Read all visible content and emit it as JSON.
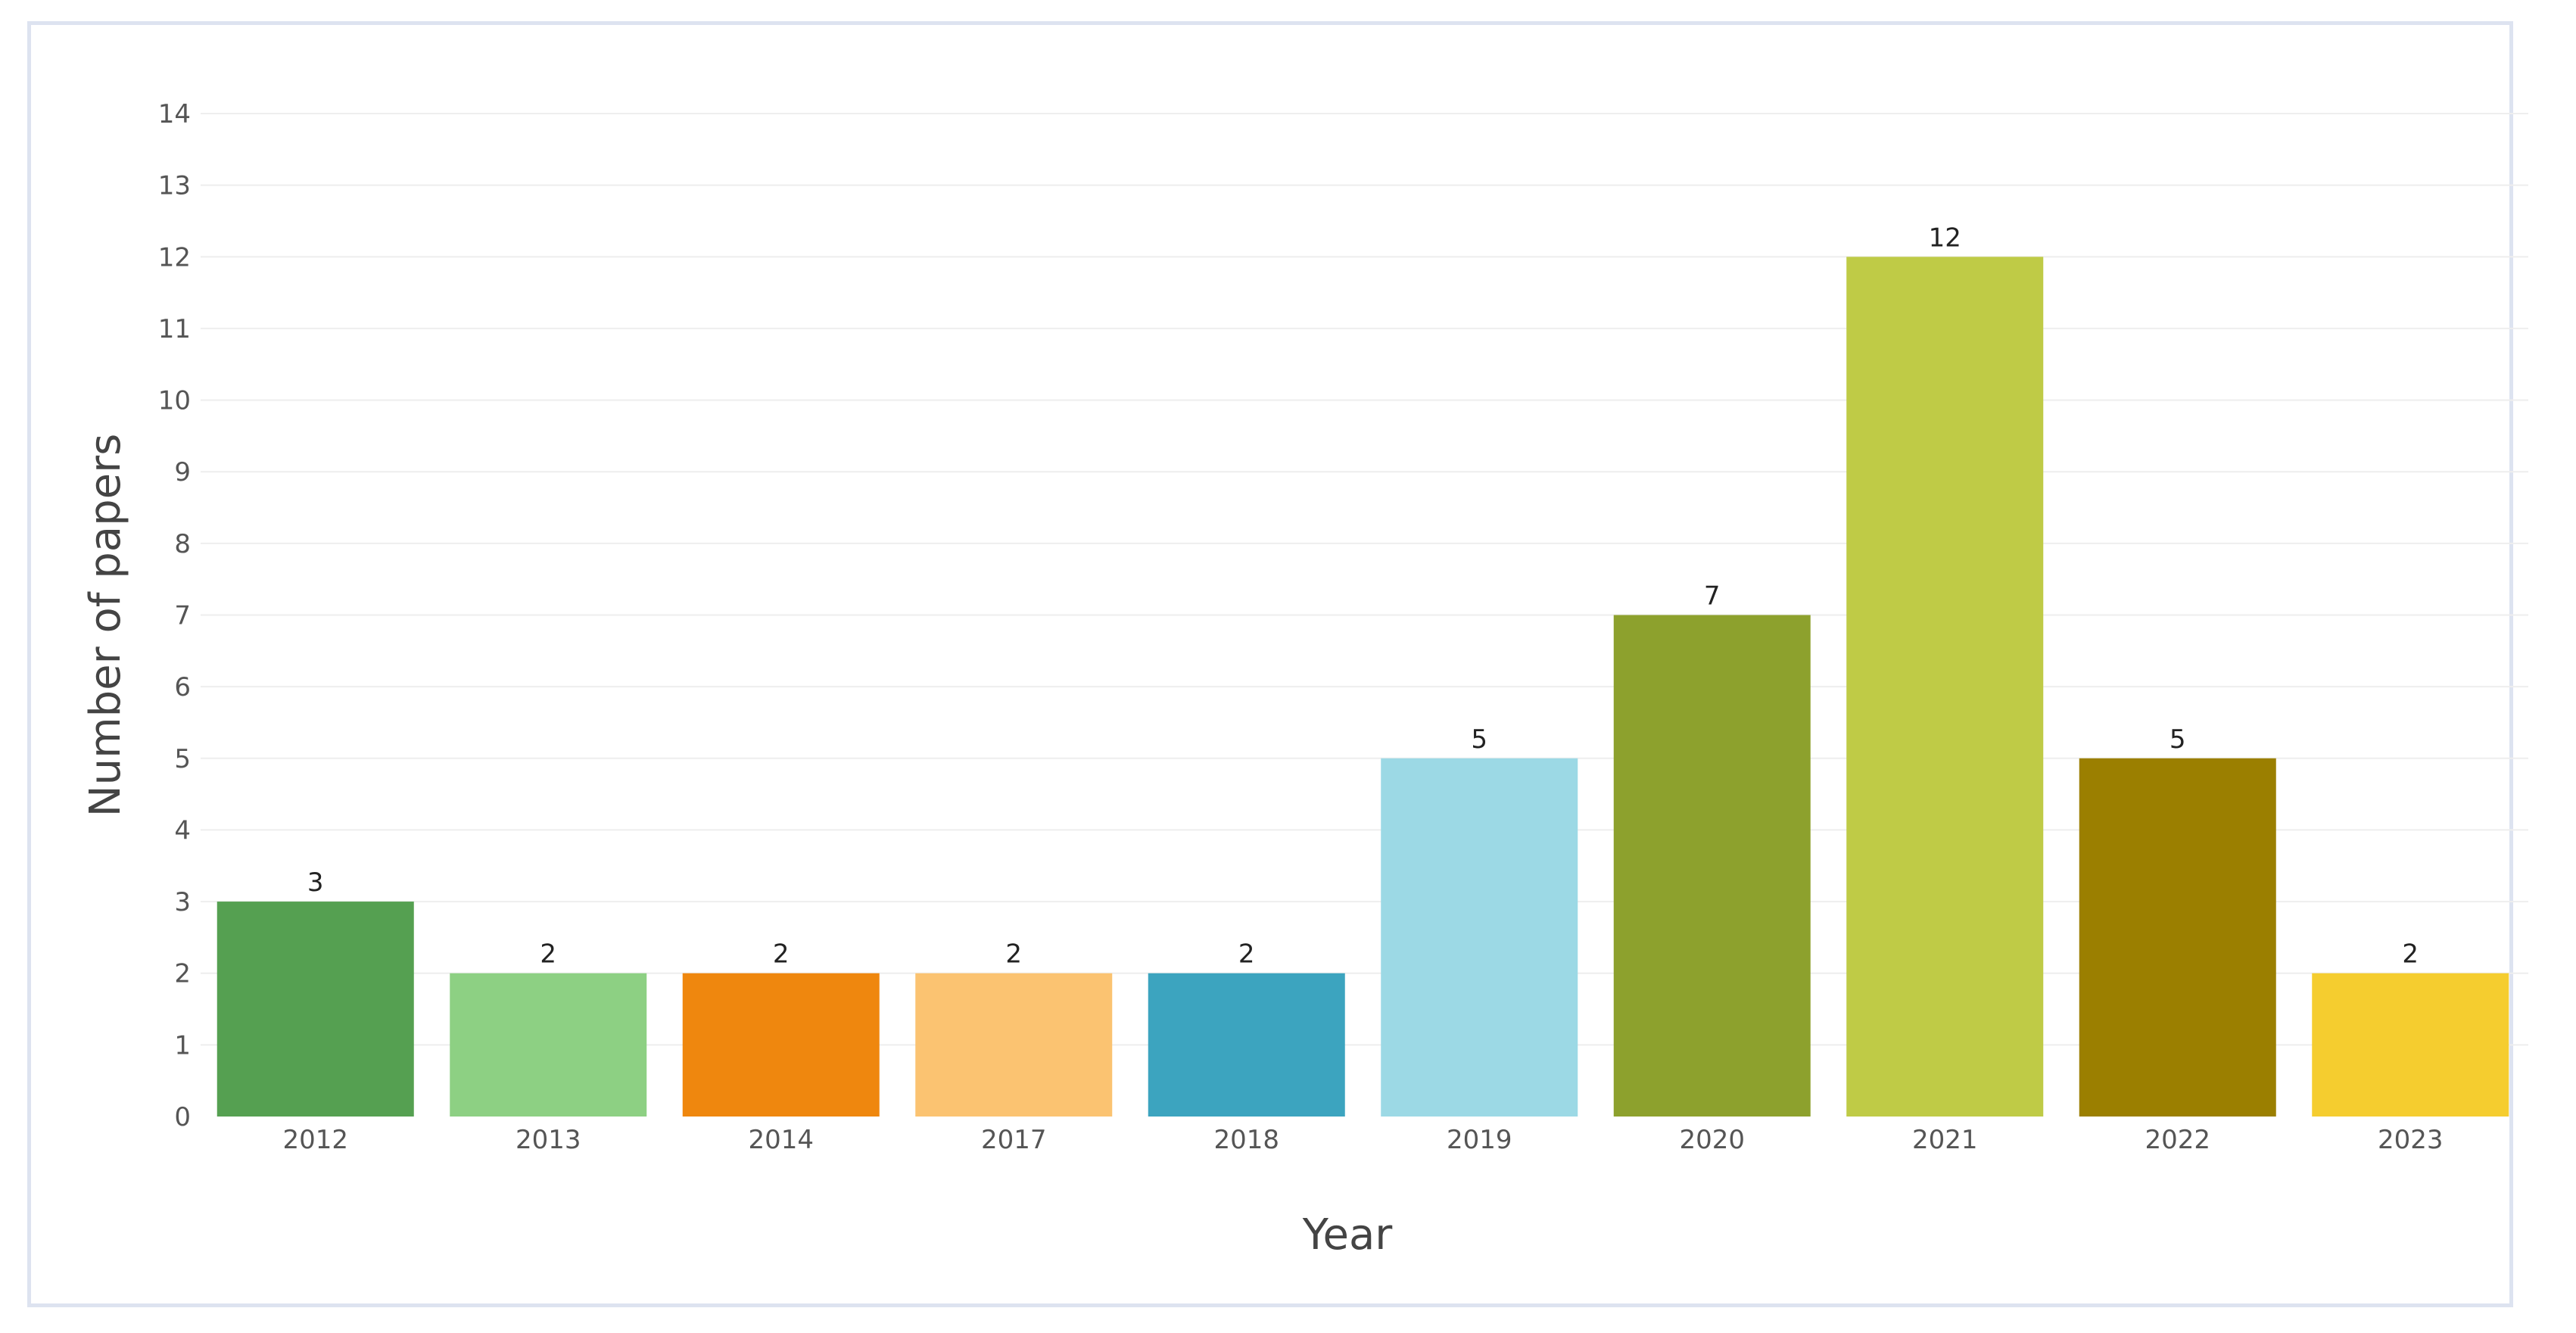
{
  "chart_data": {
    "type": "bar",
    "title": "",
    "xlabel": "Year",
    "ylabel": "Number of papers",
    "categories": [
      "2012",
      "2013",
      "2014",
      "2017",
      "2018",
      "2019",
      "2020",
      "2021",
      "2022",
      "2023"
    ],
    "values": [
      3,
      2,
      2,
      2,
      2,
      5,
      7,
      12,
      5,
      2
    ],
    "colors": [
      "#55a051",
      "#8dd083",
      "#ef870e",
      "#fbc371",
      "#3ca4bf",
      "#9cd9e5",
      "#8da12d",
      "#bfcb46",
      "#9b7f00",
      "#f5cd2f"
    ],
    "ylim": [
      0,
      14
    ],
    "yticks": [
      0,
      1,
      2,
      3,
      4,
      5,
      6,
      7,
      8,
      9,
      10,
      11,
      12,
      13,
      14
    ],
    "grid": true,
    "data_labels": true,
    "legend": "none"
  }
}
